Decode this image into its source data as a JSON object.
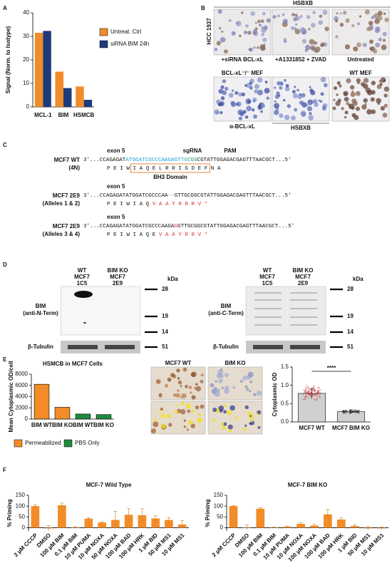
{
  "panels": {
    "labels": [
      "A",
      "B",
      "C",
      "D",
      "E",
      "F"
    ]
  },
  "panel_b": {
    "top_label": "HSBXB",
    "side_label": "HCC 1937",
    "captions": [
      "+siRNA BCL-xL",
      "+A1331852 + ZVAD",
      "Untreated",
      "α-BCL-xL",
      "HSBXB"
    ],
    "headers": [
      "BCL-xL⁻/⁻ MEF",
      "WT MEF"
    ]
  },
  "panel_c": {
    "exon": "exon 5",
    "sgrna": "sgRNA",
    "pam": "PAM",
    "bh3": "BH3 Domain",
    "rows": [
      {
        "name": [
          "MCF7 WT",
          "(4N)"
        ],
        "seq": [
          "3'...CCAGAGAT",
          "ATGGATCGCCCAAGAGTTG",
          "CGG",
          "CGTATTGGAGACGAGTTTAACGCT...5'"
        ],
        "aa": [
          "P  E  I  W  ",
          "I  A  Q  E  L  R  R  I  G  D  E  F",
          "  N  A"
        ]
      },
      {
        "name": [
          "MCF7 2E9",
          "(Alleles 1 & 2)"
        ],
        "seq": [
          "3'...CCAGAGATATGGATCGCCCAA",
          "--",
          "GTTGCGGCGTATTGGAGACGAGTTTAACGCT...5'"
        ],
        "aa": [
          "P  E  I  W  I  A  Q  ",
          "V  A  A  Y  R  R  R  V  *"
        ]
      },
      {
        "name": [
          "MCF7 2E9",
          "(Alleles 3 & 4)"
        ],
        "seq": [
          "3'...CCAGAGATATGGATCGCCCAAGA",
          "G",
          "GTTGCGGCGTATTGGAGACGAGTTTAACGCT...5'"
        ],
        "aa": [
          "P  E  I  W  I  A  Q  E  ",
          "V  A  A  Y  R  R  V  *"
        ]
      }
    ]
  },
  "panel_d": {
    "unit": "kDa",
    "blots": [
      {
        "lanes": [
          [
            "WT",
            "MCF7",
            "1C5"
          ],
          [
            "BIM KO",
            "MCF7",
            "2E9"
          ]
        ],
        "antibody": [
          "BIM",
          "(anti-N-Term)"
        ],
        "loading": "β-Tubulin",
        "markers": [
          "28",
          "19",
          "14"
        ],
        "loading_marker": "51"
      },
      {
        "lanes": [
          [
            "WT",
            "MCF7",
            "1C5"
          ],
          [
            "BIM KO",
            "MCF7",
            "2E9"
          ]
        ],
        "antibody": [
          "BIM",
          "(anti-C-Term)"
        ],
        "loading": "β-Tubulin",
        "markers": [
          "28",
          "19",
          "14"
        ],
        "loading_marker": "51"
      }
    ]
  },
  "panel_e": {
    "images": [
      "MCF7 WT",
      "BIM KO"
    ]
  },
  "chart_data": [
    {
      "type": "bar",
      "y_label": "Signal (Norm. to Isotype)",
      "categories": [
        "MCL-1",
        "BIM",
        "HSMCB"
      ],
      "series": [
        {
          "name": "Untreat. Ctrl",
          "color": "#f28c28",
          "values": [
            31.5,
            15,
            8.7
          ]
        },
        {
          "name": "siRNA BIM 24h",
          "color": "#1f3a7a",
          "values": [
            32.3,
            8,
            3
          ]
        }
      ],
      "ylim": [
        0,
        40
      ],
      "yticks": [
        0,
        10,
        20,
        30,
        40
      ],
      "legend": "right"
    },
    {
      "type": "bar",
      "title": "HSMCB in MCF7 Cells",
      "y_label": "Mean Cytoplasmic OD/cell",
      "categories": [
        "BIM WT",
        "BIM KO",
        "BIM WT",
        "BIM KO"
      ],
      "series": [
        {
          "name": "Permeabilized",
          "color": "#f28c28",
          "values": [
            6200,
            2100,
            null,
            null
          ]
        },
        {
          "name": "PBS Only",
          "color": "#1e8a3c",
          "values": [
            null,
            null,
            900,
            800
          ]
        }
      ],
      "ylim": [
        0,
        8000
      ],
      "yticks": [
        0,
        2000,
        4000,
        6000,
        8000
      ],
      "legend": "bottom"
    },
    {
      "type": "bar",
      "y_label": "Cytoplasmic OD",
      "categories": [
        "MCF7 WT",
        "MCF7 BIM KO"
      ],
      "values": [
        0.78,
        0.28
      ],
      "errors": [
        0.12,
        0.05
      ],
      "color": "#d0d0d0",
      "ylim": [
        0,
        1.5
      ],
      "yticks": [
        {
          "value": 0,
          "label": "0.0"
        },
        0.5,
        {
          "value": 1,
          "label": "1.0"
        },
        1.5
      ],
      "annotation": "****"
    },
    {
      "type": "bar",
      "title": "MCF-7 Wild Type",
      "y_label": "% Priming",
      "color": "#f28c28",
      "categories": [
        "2 µM CCCP",
        "DMSO",
        "100 µM BIM",
        "0.1 µM BIM",
        "10 µM PUMA",
        "10 µM NOXA",
        "50 µM NOXA",
        "100 µM BAD",
        "100 µM HRK",
        "1 µM BID",
        "50 µM MS1",
        "10 µM MS1"
      ],
      "values": [
        100,
        -3,
        104,
        2,
        42,
        24,
        36,
        60,
        58,
        43,
        36,
        15
      ],
      "errors": [
        6,
        12,
        10,
        3,
        4,
        4,
        40,
        28,
        30,
        12,
        10,
        18
      ],
      "ylim": [
        -15,
        150
      ],
      "yticks": [
        0,
        50,
        100,
        150
      ]
    },
    {
      "type": "bar",
      "title": "MCF-7 BIM KO",
      "y_label": "% Priming",
      "color": "#f28c28",
      "categories": [
        "2 µM CCCP",
        "DMSO",
        "100 µM BIM",
        "0.1 µM BIM",
        "10 µM PUMA",
        "10 µM NOXA",
        "100 µM NOXA",
        "100 µM BAD",
        "100 µM HRK",
        "1 µM BID",
        "50 µM MS1",
        "10 µM MS1"
      ],
      "values": [
        100,
        2,
        88,
        2,
        5,
        18,
        10,
        62,
        38,
        8,
        -3,
        -3
      ],
      "errors": [
        2,
        10,
        4,
        1,
        3,
        6,
        6,
        22,
        8,
        6,
        8,
        6
      ],
      "ylim": [
        -15,
        150
      ],
      "yticks": [
        0,
        50,
        100,
        150
      ]
    }
  ]
}
